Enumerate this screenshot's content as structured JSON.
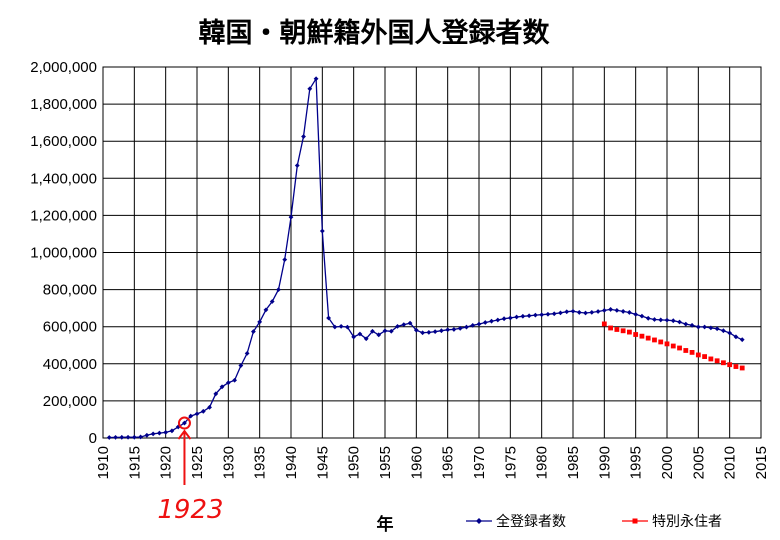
{
  "chart_data": {
    "type": "line",
    "title": "韓国・朝鮮籍外国人登録者数",
    "xlabel": "年",
    "ylabel": "",
    "xlim": [
      1910,
      2015
    ],
    "ylim": [
      0,
      2000000
    ],
    "xticks": [
      1910,
      1915,
      1920,
      1925,
      1930,
      1935,
      1940,
      1945,
      1950,
      1955,
      1960,
      1965,
      1970,
      1975,
      1980,
      1985,
      1990,
      1995,
      2000,
      2005,
      2010,
      2015
    ],
    "yticks": [
      0,
      200000,
      400000,
      600000,
      800000,
      1000000,
      1200000,
      1400000,
      1600000,
      1800000,
      2000000
    ],
    "ytick_labels": [
      "0",
      "200,000",
      "400,000",
      "600,000",
      "800,000",
      "1,000,000",
      "1,200,000",
      "1,400,000",
      "1,600,000",
      "1,800,000",
      "2,000,000"
    ],
    "grid": true,
    "legend_position": "bottom-right",
    "series": [
      {
        "name": "全登録者数",
        "color": "#00008b",
        "marker": "diamond",
        "x": [
          1911,
          1912,
          1913,
          1914,
          1915,
          1916,
          1917,
          1918,
          1919,
          1920,
          1921,
          1922,
          1923,
          1924,
          1925,
          1926,
          1927,
          1928,
          1929,
          1930,
          1931,
          1932,
          1933,
          1934,
          1935,
          1936,
          1937,
          1938,
          1939,
          1940,
          1941,
          1942,
          1943,
          1944,
          1945,
          1946,
          1947,
          1948,
          1949,
          1950,
          1951,
          1952,
          1953,
          1954,
          1955,
          1956,
          1957,
          1958,
          1959,
          1960,
          1961,
          1962,
          1963,
          1964,
          1965,
          1966,
          1967,
          1968,
          1969,
          1970,
          1971,
          1972,
          1973,
          1974,
          1975,
          1976,
          1977,
          1978,
          1979,
          1980,
          1981,
          1982,
          1983,
          1984,
          1985,
          1986,
          1987,
          1988,
          1989,
          1990,
          1991,
          1992,
          1993,
          1994,
          1995,
          1996,
          1997,
          1998,
          1999,
          2000,
          2001,
          2002,
          2003,
          2004,
          2005,
          2006,
          2007,
          2008,
          2009,
          2010,
          2011,
          2012
        ],
        "y": [
          2500,
          3200,
          3600,
          4100,
          4000,
          5600,
          14500,
          22400,
          26600,
          30200,
          38700,
          59700,
          80600,
          118200,
          129900,
          143800,
          165300,
          238100,
          276000,
          298100,
          311200,
          390500,
          456200,
          573700,
          625700,
          690500,
          735700,
          799900,
          961600,
          1190400,
          1469200,
          1625100,
          1882500,
          1936800,
          1115600,
          647000,
          598500,
          601800,
          597600,
          544900,
          560700,
          535100,
          575300,
          556200,
          577700,
          575300,
          601800,
          611100,
          619100,
          581300,
          567500,
          569400,
          573300,
          578500,
          583500,
          585300,
          591300,
          598000,
          607300,
          614200,
          622700,
          629800,
          636300,
          643100,
          647200,
          652300,
          656200,
          659000,
          662600,
          664500,
          667300,
          669900,
          674600,
          680700,
          683300,
          677000,
          673800,
          677100,
          681800,
          687900,
          693100,
          688100,
          682300,
          676800,
          666400,
          657200,
          645300,
          638800,
          636500,
          635300,
          632400,
          625400,
          613800,
          607400,
          598700,
          598200,
          593500,
          589200,
          578500,
          565900,
          545400,
          530000
        ]
      },
      {
        "name": "特別永住者",
        "color": "#ff0000",
        "marker": "square",
        "x": [
          1990,
          1991,
          1992,
          1993,
          1994,
          1995,
          1996,
          1997,
          1998,
          1999,
          2000,
          2001,
          2002,
          2003,
          2004,
          2005,
          2006,
          2007,
          2008,
          2009,
          2010,
          2011,
          2012
        ],
        "y": [
          615000,
          593000,
          585000,
          578000,
          571000,
          557900,
          548900,
          538500,
          528500,
          517800,
          507400,
          495900,
          485200,
          471800,
          461500,
          447800,
          438900,
          426200,
          416300,
          405600,
          395200,
          385200,
          377400
        ]
      }
    ],
    "annotations": [
      {
        "text": "1923",
        "x": 1923,
        "y": 80600,
        "style": "handwritten-circle-arrow",
        "color": "#ee1111"
      }
    ]
  }
}
